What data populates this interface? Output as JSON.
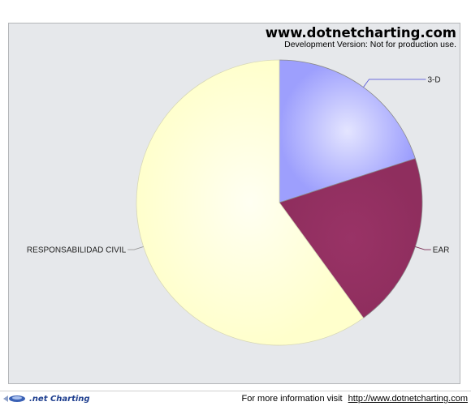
{
  "watermark": {
    "title": "www.dotnetcharting.com",
    "subtitle": "Development Version: Not for production use."
  },
  "footer": {
    "logo_text": ".net Charting",
    "info_text": "For more information visit",
    "link_text": "http://www.dotnetcharting.com"
  },
  "colors": {
    "panel_background": "#e6e8eb",
    "slice_3d": "#9d9ffd",
    "slice_ear": "#993366",
    "slice_responsabilidad": "#ffffcc"
  },
  "chart_data": {
    "type": "pie",
    "title": "",
    "categories": [
      "3-D",
      "EAR",
      "RESPONSABILIDAD CIVIL"
    ],
    "values": [
      20,
      20,
      60
    ],
    "colors": [
      "#9d9ffd",
      "#993366",
      "#ffffcc"
    ],
    "legend": "none",
    "labels": "outside with leader lines"
  }
}
